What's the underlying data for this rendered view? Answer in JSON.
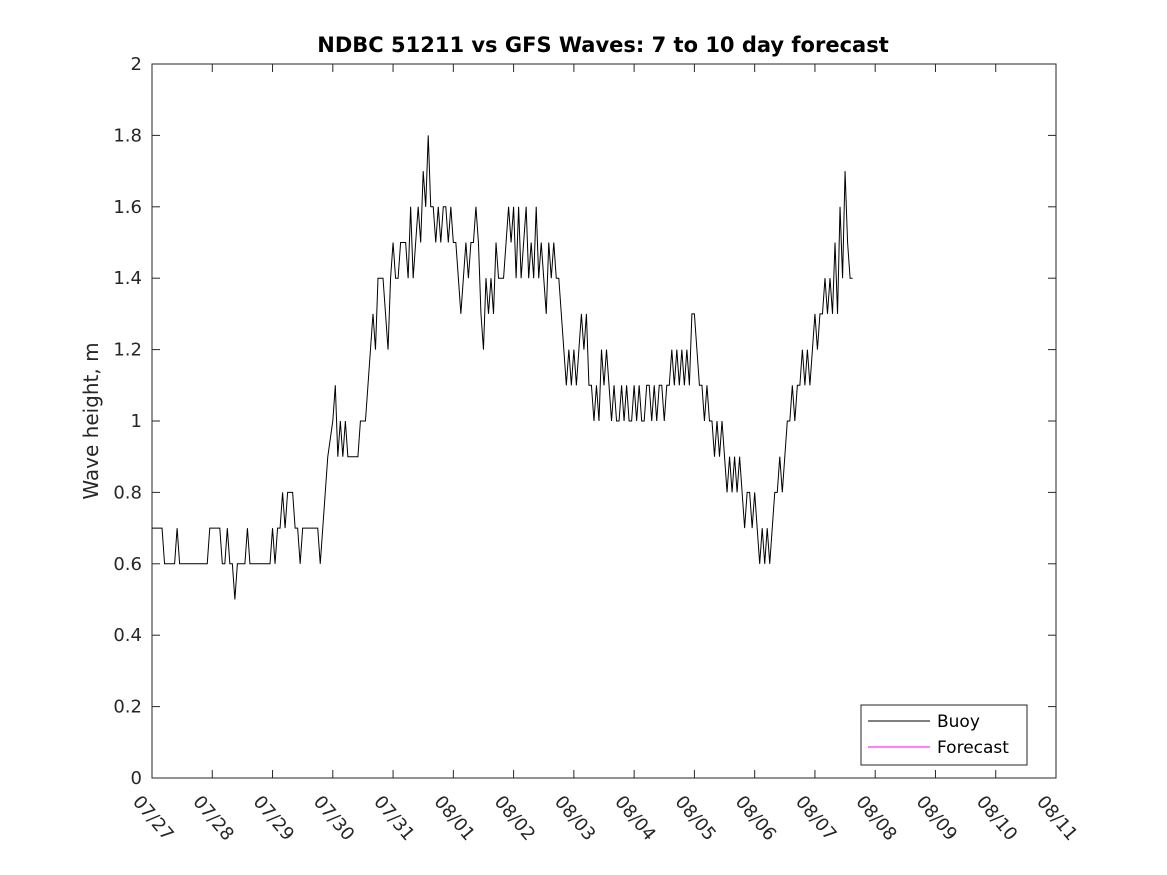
{
  "chart_data": {
    "type": "line",
    "title": "NDBC 51211 vs GFS Waves: 7 to 10 day forecast",
    "xlabel": "",
    "ylabel": "Wave height, m",
    "x_ticks": [
      "07/27",
      "07/28",
      "07/29",
      "07/30",
      "07/31",
      "08/01",
      "08/02",
      "08/03",
      "08/04",
      "08/05",
      "08/06",
      "08/07",
      "08/08",
      "08/09",
      "08/10",
      "08/11"
    ],
    "xlim": [
      "07/27",
      "08/11"
    ],
    "ylim": [
      0,
      2
    ],
    "y_ticks": [
      "0",
      "0.2",
      "0.4",
      "0.6",
      "0.8",
      "1",
      "1.2",
      "1.4",
      "1.6",
      "1.8",
      "2"
    ],
    "grid": false,
    "legend_position": "bottom-right",
    "series": [
      {
        "name": "Buoy",
        "color": "#000000",
        "points": [
          [
            "07/27 00:00",
            0.7
          ],
          [
            "07/27 04:00",
            0.7
          ],
          [
            "07/27 05:00",
            0.6
          ],
          [
            "07/27 09:00",
            0.6
          ],
          [
            "07/27 10:00",
            0.7
          ],
          [
            "07/27 11:00",
            0.6
          ],
          [
            "07/27 22:00",
            0.6
          ],
          [
            "07/27 23:00",
            0.7
          ],
          [
            "07/28 03:00",
            0.7
          ],
          [
            "07/28 04:00",
            0.6
          ],
          [
            "07/28 05:00",
            0.6
          ],
          [
            "07/28 06:00",
            0.7
          ],
          [
            "07/28 07:00",
            0.6
          ],
          [
            "07/28 08:00",
            0.6
          ],
          [
            "07/28 09:00",
            0.5
          ],
          [
            "07/28 10:00",
            0.6
          ],
          [
            "07/28 13:00",
            0.6
          ],
          [
            "07/28 14:00",
            0.7
          ],
          [
            "07/28 15:00",
            0.6
          ],
          [
            "07/28 23:00",
            0.6
          ],
          [
            "07/29 00:00",
            0.7
          ],
          [
            "07/29 01:00",
            0.6
          ],
          [
            "07/29 02:00",
            0.7
          ],
          [
            "07/29 03:00",
            0.7
          ],
          [
            "07/29 04:00",
            0.8
          ],
          [
            "07/29 05:00",
            0.7
          ],
          [
            "07/29 06:00",
            0.8
          ],
          [
            "07/29 08:00",
            0.8
          ],
          [
            "07/29 09:00",
            0.7
          ],
          [
            "07/29 10:00",
            0.7
          ],
          [
            "07/29 11:00",
            0.6
          ],
          [
            "07/29 12:00",
            0.7
          ],
          [
            "07/29 18:00",
            0.7
          ],
          [
            "07/29 19:00",
            0.6
          ],
          [
            "07/29 20:00",
            0.7
          ],
          [
            "07/29 21:00",
            0.8
          ],
          [
            "07/29 22:00",
            0.9
          ],
          [
            "07/30 00:00",
            1.0
          ],
          [
            "07/30 01:00",
            1.1
          ],
          [
            "07/30 02:00",
            0.9
          ],
          [
            "07/30 03:00",
            1.0
          ],
          [
            "07/30 04:00",
            0.9
          ],
          [
            "07/30 05:00",
            1.0
          ],
          [
            "07/30 06:00",
            0.9
          ],
          [
            "07/30 10:00",
            0.9
          ],
          [
            "07/30 11:00",
            1.0
          ],
          [
            "07/30 13:00",
            1.0
          ],
          [
            "07/30 14:00",
            1.1
          ],
          [
            "07/30 15:00",
            1.2
          ],
          [
            "07/30 16:00",
            1.3
          ],
          [
            "07/30 17:00",
            1.2
          ],
          [
            "07/30 18:00",
            1.4
          ],
          [
            "07/30 20:00",
            1.4
          ],
          [
            "07/30 21:00",
            1.3
          ],
          [
            "07/30 22:00",
            1.2
          ],
          [
            "07/30 23:00",
            1.4
          ],
          [
            "07/31 00:00",
            1.5
          ],
          [
            "07/31 01:00",
            1.4
          ],
          [
            "07/31 02:00",
            1.4
          ],
          [
            "07/31 03:00",
            1.5
          ],
          [
            "07/31 05:00",
            1.5
          ],
          [
            "07/31 06:00",
            1.4
          ],
          [
            "07/31 07:00",
            1.6
          ],
          [
            "07/31 08:00",
            1.4
          ],
          [
            "07/31 09:00",
            1.5
          ],
          [
            "07/31 10:00",
            1.6
          ],
          [
            "07/31 11:00",
            1.5
          ],
          [
            "07/31 12:00",
            1.7
          ],
          [
            "07/31 13:00",
            1.6
          ],
          [
            "07/31 14:00",
            1.8
          ],
          [
            "07/31 15:00",
            1.6
          ],
          [
            "07/31 16:00",
            1.6
          ],
          [
            "07/31 17:00",
            1.5
          ],
          [
            "07/31 18:00",
            1.6
          ],
          [
            "07/31 19:00",
            1.5
          ],
          [
            "07/31 20:00",
            1.6
          ],
          [
            "07/31 21:00",
            1.6
          ],
          [
            "07/31 22:00",
            1.5
          ],
          [
            "07/31 23:00",
            1.6
          ],
          [
            "08/01 00:00",
            1.5
          ],
          [
            "08/01 01:00",
            1.5
          ],
          [
            "08/01 02:00",
            1.4
          ],
          [
            "08/01 03:00",
            1.3
          ],
          [
            "08/01 04:00",
            1.4
          ],
          [
            "08/01 05:00",
            1.5
          ],
          [
            "08/01 06:00",
            1.4
          ],
          [
            "08/01 07:00",
            1.5
          ],
          [
            "08/01 08:00",
            1.5
          ],
          [
            "08/01 09:00",
            1.6
          ],
          [
            "08/01 10:00",
            1.5
          ],
          [
            "08/01 11:00",
            1.3
          ],
          [
            "08/01 12:00",
            1.2
          ],
          [
            "08/01 13:00",
            1.4
          ],
          [
            "08/01 14:00",
            1.3
          ],
          [
            "08/01 15:00",
            1.4
          ],
          [
            "08/01 16:00",
            1.3
          ],
          [
            "08/01 17:00",
            1.5
          ],
          [
            "08/01 18:00",
            1.4
          ],
          [
            "08/01 20:00",
            1.4
          ],
          [
            "08/01 21:00",
            1.5
          ],
          [
            "08/01 22:00",
            1.6
          ],
          [
            "08/01 23:00",
            1.5
          ],
          [
            "08/02 00:00",
            1.6
          ],
          [
            "08/02 01:00",
            1.4
          ],
          [
            "08/02 02:00",
            1.6
          ],
          [
            "08/02 03:00",
            1.4
          ],
          [
            "08/02 04:00",
            1.5
          ],
          [
            "08/02 05:00",
            1.6
          ],
          [
            "08/02 06:00",
            1.4
          ],
          [
            "08/02 07:00",
            1.5
          ],
          [
            "08/02 08:00",
            1.4
          ],
          [
            "08/02 09:00",
            1.6
          ],
          [
            "08/02 10:00",
            1.4
          ],
          [
            "08/02 11:00",
            1.5
          ],
          [
            "08/02 12:00",
            1.4
          ],
          [
            "08/02 13:00",
            1.3
          ],
          [
            "08/02 14:00",
            1.5
          ],
          [
            "08/02 15:00",
            1.4
          ],
          [
            "08/02 16:00",
            1.5
          ],
          [
            "08/02 17:00",
            1.4
          ],
          [
            "08/02 18:00",
            1.4
          ],
          [
            "08/02 19:00",
            1.3
          ],
          [
            "08/02 20:00",
            1.2
          ],
          [
            "08/02 21:00",
            1.1
          ],
          [
            "08/02 22:00",
            1.2
          ],
          [
            "08/02 23:00",
            1.1
          ],
          [
            "08/03 00:00",
            1.2
          ],
          [
            "08/03 01:00",
            1.1
          ],
          [
            "08/03 02:00",
            1.2
          ],
          [
            "08/03 03:00",
            1.3
          ],
          [
            "08/03 04:00",
            1.2
          ],
          [
            "08/03 05:00",
            1.3
          ],
          [
            "08/03 06:00",
            1.1
          ],
          [
            "08/03 07:00",
            1.1
          ],
          [
            "08/03 08:00",
            1.0
          ],
          [
            "08/03 09:00",
            1.1
          ],
          [
            "08/03 10:00",
            1.0
          ],
          [
            "08/03 11:00",
            1.2
          ],
          [
            "08/03 12:00",
            1.1
          ],
          [
            "08/03 13:00",
            1.2
          ],
          [
            "08/03 14:00",
            1.1
          ],
          [
            "08/03 15:00",
            1.0
          ],
          [
            "08/03 16:00",
            1.1
          ],
          [
            "08/03 17:00",
            1.0
          ],
          [
            "08/03 18:00",
            1.0
          ],
          [
            "08/03 19:00",
            1.1
          ],
          [
            "08/03 20:00",
            1.0
          ],
          [
            "08/03 21:00",
            1.1
          ],
          [
            "08/03 22:00",
            1.0
          ],
          [
            "08/03 23:00",
            1.0
          ],
          [
            "08/04 00:00",
            1.1
          ],
          [
            "08/04 01:00",
            1.0
          ],
          [
            "08/04 02:00",
            1.1
          ],
          [
            "08/04 03:00",
            1.0
          ],
          [
            "08/04 04:00",
            1.0
          ],
          [
            "08/04 05:00",
            1.1
          ],
          [
            "08/04 06:00",
            1.1
          ],
          [
            "08/04 07:00",
            1.0
          ],
          [
            "08/04 08:00",
            1.1
          ],
          [
            "08/04 09:00",
            1.0
          ],
          [
            "08/04 10:00",
            1.1
          ],
          [
            "08/04 11:00",
            1.1
          ],
          [
            "08/04 12:00",
            1.0
          ],
          [
            "08/04 13:00",
            1.1
          ],
          [
            "08/04 14:00",
            1.1
          ],
          [
            "08/04 15:00",
            1.2
          ],
          [
            "08/04 16:00",
            1.1
          ],
          [
            "08/04 17:00",
            1.2
          ],
          [
            "08/04 18:00",
            1.1
          ],
          [
            "08/04 19:00",
            1.2
          ],
          [
            "08/04 20:00",
            1.1
          ],
          [
            "08/04 21:00",
            1.2
          ],
          [
            "08/04 22:00",
            1.1
          ],
          [
            "08/04 23:00",
            1.3
          ],
          [
            "08/05 00:00",
            1.3
          ],
          [
            "08/05 01:00",
            1.2
          ],
          [
            "08/05 02:00",
            1.1
          ],
          [
            "08/05 03:00",
            1.1
          ],
          [
            "08/05 04:00",
            1.0
          ],
          [
            "08/05 05:00",
            1.1
          ],
          [
            "08/05 06:00",
            1.0
          ],
          [
            "08/05 07:00",
            1.0
          ],
          [
            "08/05 08:00",
            0.9
          ],
          [
            "08/05 09:00",
            1.0
          ],
          [
            "08/05 10:00",
            0.9
          ],
          [
            "08/05 11:00",
            1.0
          ],
          [
            "08/05 12:00",
            0.9
          ],
          [
            "08/05 13:00",
            0.8
          ],
          [
            "08/05 14:00",
            0.9
          ],
          [
            "08/05 15:00",
            0.8
          ],
          [
            "08/05 16:00",
            0.9
          ],
          [
            "08/05 17:00",
            0.8
          ],
          [
            "08/05 18:00",
            0.9
          ],
          [
            "08/05 19:00",
            0.8
          ],
          [
            "08/05 20:00",
            0.7
          ],
          [
            "08/05 21:00",
            0.8
          ],
          [
            "08/05 22:00",
            0.8
          ],
          [
            "08/05 23:00",
            0.7
          ],
          [
            "08/06 00:00",
            0.8
          ],
          [
            "08/06 01:00",
            0.7
          ],
          [
            "08/06 02:00",
            0.6
          ],
          [
            "08/06 03:00",
            0.7
          ],
          [
            "08/06 04:00",
            0.6
          ],
          [
            "08/06 05:00",
            0.7
          ],
          [
            "08/06 06:00",
            0.6
          ],
          [
            "08/06 07:00",
            0.7
          ],
          [
            "08/06 08:00",
            0.8
          ],
          [
            "08/06 09:00",
            0.8
          ],
          [
            "08/06 10:00",
            0.9
          ],
          [
            "08/06 11:00",
            0.8
          ],
          [
            "08/06 12:00",
            0.9
          ],
          [
            "08/06 13:00",
            1.0
          ],
          [
            "08/06 14:00",
            1.0
          ],
          [
            "08/06 15:00",
            1.1
          ],
          [
            "08/06 16:00",
            1.0
          ],
          [
            "08/06 17:00",
            1.1
          ],
          [
            "08/06 18:00",
            1.1
          ],
          [
            "08/06 19:00",
            1.2
          ],
          [
            "08/06 20:00",
            1.1
          ],
          [
            "08/06 21:00",
            1.2
          ],
          [
            "08/06 22:00",
            1.1
          ],
          [
            "08/06 23:00",
            1.2
          ],
          [
            "08/07 00:00",
            1.3
          ],
          [
            "08/07 01:00",
            1.2
          ],
          [
            "08/07 02:00",
            1.3
          ],
          [
            "08/07 03:00",
            1.3
          ],
          [
            "08/07 04:00",
            1.4
          ],
          [
            "08/07 05:00",
            1.3
          ],
          [
            "08/07 06:00",
            1.4
          ],
          [
            "08/07 07:00",
            1.3
          ],
          [
            "08/07 08:00",
            1.5
          ],
          [
            "08/07 09:00",
            1.3
          ],
          [
            "08/07 10:00",
            1.6
          ],
          [
            "08/07 11:00",
            1.4
          ],
          [
            "08/07 12:00",
            1.7
          ],
          [
            "08/07 13:00",
            1.5
          ],
          [
            "08/07 14:00",
            1.4
          ],
          [
            "08/07 15:00",
            1.4
          ]
        ]
      },
      {
        "name": "Forecast",
        "color": "#ff00ff",
        "points": []
      }
    ]
  }
}
